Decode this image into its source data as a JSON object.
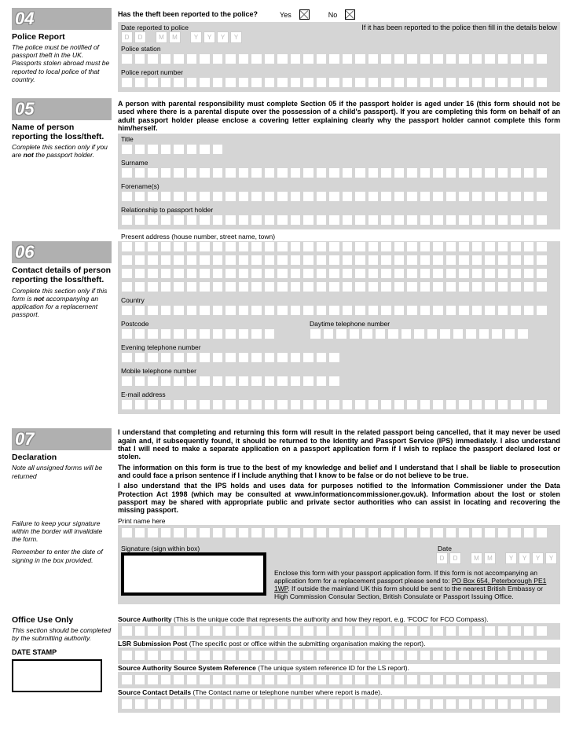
{
  "s04": {
    "num": "04",
    "title": "Police Report",
    "note": "The police must be notified of passport theft in the UK. Passports stolen abroad must be reported to local police of that country.",
    "q": "Has the theft been reported to the police?",
    "yes": "Yes",
    "no": "No",
    "date_label": "Date reported to police",
    "hint": "If it has been reported to the police then fill in the details below",
    "station": "Police station",
    "report_num": "Police report number",
    "D": "D",
    "M": "M",
    "Y": "Y"
  },
  "s05": {
    "num": "05",
    "title": "Name of person reporting the loss/theft.",
    "note_a": "Complete this section only if you are ",
    "note_not": "not",
    "note_b": " the passport holder.",
    "intro": "A person with parental responsibility must complete Section 05 if the passport holder is aged under 16 (this form should not be used where there is a parental dispute over the possession of a child's passport). If you are completing this form on behalf of an adult passport holder please enclose a covering letter explaining clearly why the passport holder cannot complete this form him/herself.",
    "ftitle": "Title",
    "surname": "Surname",
    "forename": "Forename(s)",
    "rel": "Relationship to passport holder",
    "addr": "Present address (house number, street name, town)"
  },
  "s06": {
    "num": "06",
    "title": "Contact details of person reporting the loss/theft.",
    "note_a": "Complete this section only if this form is ",
    "note_not": "not",
    "note_b": " accompanying an application for a replacement passport.",
    "country": "Country",
    "postcode": "Postcode",
    "daytel": "Daytime telephone number",
    "evetel": "Evening telephone number",
    "mobile": "Mobile telephone number",
    "email": "E-mail address"
  },
  "s07": {
    "num": "07",
    "title": "Declaration",
    "note1": "Note all unsigned forms will be returned",
    "note2": "Failure to keep your signature within the border will invalidate the form.",
    "note3": "Remember to enter the date of signing in the box provided.",
    "p1": "I understand that completing and returning this form will result in the related passport being cancelled, that it may never be used again and, if subsequently found, it should be returned to the Identity and Passport Service (IPS) immediately. I also understand that I will need to make a separate application on a passport application form if I wish to replace the passport declared lost or stolen.",
    "p2": "The information on this form is true to the best of my knowledge and belief and I understand that I shall be liable to prosecution and could face a prison sentence if I include anything that I know to be false or do not believe to be true.",
    "p3": "I also understand that the IPS holds and uses data for purposes notified to the Information Commissioner under the Data Protection Act 1998 (which may be consulted at www.informationcommissioner.gov.uk). Information about the lost or stolen passport may be shared with appropriate public and private sector authorities who can assist in locating and recovering the missing passport.",
    "print": "Print name here",
    "sig": "Signature (sign within box)",
    "date": "Date",
    "enclose_a": "Enclose this form with your passport application form. If this form is not accompanying an application form for a  replacement passport please send to: ",
    "enclose_addr": "PO Box 654, Peterborough PE1 1WP",
    "enclose_b": ". If outside the mainland UK this form should be sent to the nearest British Embassy or High Commission Consular Section, British Consulate or Passport Issuing Office.",
    "D": "D",
    "M": "M",
    "Y": "Y"
  },
  "office": {
    "title": "Office Use Only",
    "note": "This section should be completed by the submitting authority.",
    "stamp": "DATE STAMP",
    "l1": "Source Authority ",
    "l1n": "(This is the unique code that represents the authority and how they report, e.g. 'FCOC' for FCO Compass).",
    "l2": "LSR Submission Post ",
    "l2n": "(The specific post or office within the submitting organisation making the report).",
    "l3": "Source Authority Source System Reference ",
    "l3n": "(The unique system reference ID for the LS report).",
    "l4": "Source Contact Details ",
    "l4n": "(The Contact name or telephone number where report is made)."
  }
}
